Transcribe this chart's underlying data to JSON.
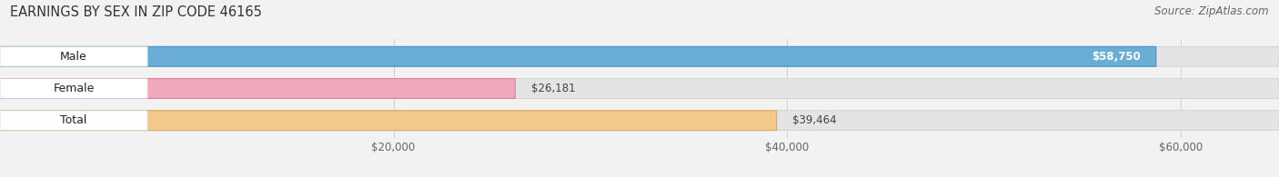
{
  "title": "EARNINGS BY SEX IN ZIP CODE 46165",
  "source": "Source: ZipAtlas.com",
  "categories": [
    "Male",
    "Female",
    "Total"
  ],
  "values": [
    58750,
    26181,
    39464
  ],
  "labels": [
    "$58,750",
    "$26,181",
    "$39,464"
  ],
  "bar_colors": [
    "#6aaed6",
    "#f2a8bc",
    "#f5c98a"
  ],
  "bar_edge_colors": [
    "#4a90c0",
    "#d8809a",
    "#d8a860"
  ],
  "label_inside": [
    true,
    false,
    false
  ],
  "xlim": [
    0,
    65000
  ],
  "xticks": [
    20000,
    40000,
    60000
  ],
  "xticklabels": [
    "$20,000",
    "$40,000",
    "$60,000"
  ],
  "background_color": "#f2f2f2",
  "bar_bg_color": "#e4e4e4",
  "bar_bg_edge_color": "#cccccc",
  "title_fontsize": 10.5,
  "source_fontsize": 8.5,
  "tick_fontsize": 8.5,
  "label_fontsize": 8.5,
  "category_fontsize": 9
}
